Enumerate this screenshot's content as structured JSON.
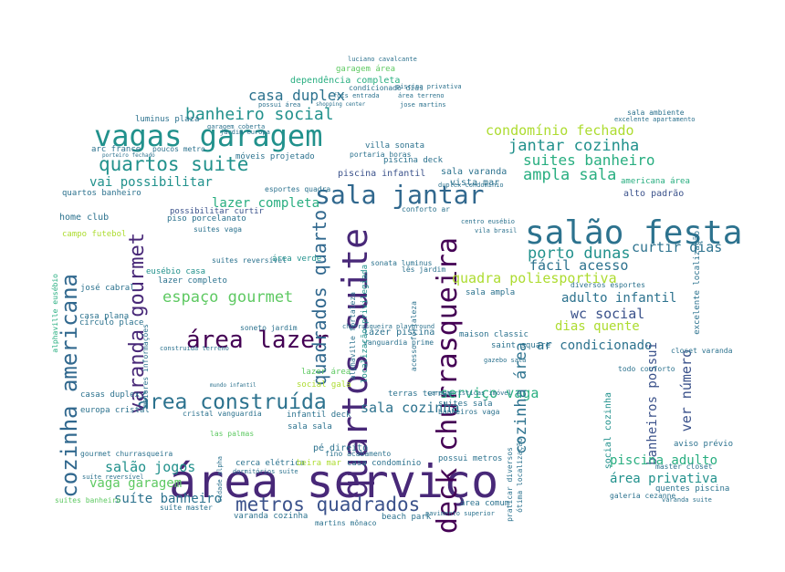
{
  "word_cloud": {
    "palette": [
      "#440154",
      "#3b528b",
      "#2c728e",
      "#21918c",
      "#28ae80",
      "#5ec962",
      "#addc30"
    ],
    "words": {
      "area_servico": "área serviço",
      "salao_festa": "salão festa",
      "vagas_garagem": "vagas garagem",
      "quartos_suite_big": "quartos suite",
      "sala_jantar": "sala jantar",
      "deck_churrasqueira": "deck churrasqueira",
      "area_lazer": "área lazer",
      "area_construida": "área construída",
      "cozinha_americana": "cozinha americana",
      "varanda_gourmet": "varanda gourmet",
      "quadrados_quarto": "quadrados quarto",
      "metros_quadrados": "metros quadrados",
      "banheiro_social": "banheiro social",
      "quartos_suite_small": "quartos suite",
      "casa_duplex": "casa duplex",
      "jantar_cozinha": "jantar cozinha",
      "suites_banheiro": "suites banheiro",
      "ampla_sala": "ampla sala",
      "condominio_fechado": "condomínio fechado",
      "espaco_gourmet": "espaço gourmet",
      "porto_dunas": "porto dunas",
      "facil_acesso": "fácil acesso",
      "curtir_dias": "curtir dias",
      "adulto_infantil": "adulto infantil",
      "wc_social": "wc social",
      "dias_quente": "dias quente",
      "ar_condicionado": "ar condicionado",
      "servico_vaga": "serviço vaga",
      "quadra_poliesportiva": "quadra poliesportiva",
      "sala_cozinha": "sala cozinha",
      "cozinha_area": "cozinha área",
      "banheiros_possui": "banheiros possui",
      "ver_numero": "ver número",
      "piscina_adulto": "piscina adulto",
      "area_privativa": "área privativa",
      "salao_jogos": "salão jogos",
      "vaga_garagem": "vaga garagem",
      "suite_banheiro": "suíte banheiro",
      "lazer_completa": "lazer completa",
      "vai_possibilitar": "vai possibilitar",
      "dependencia_completa": "dependência completa",
      "garagem_area": "garagem área",
      "alto_padrao": "alto padrão",
      "americana_area": "americana área",
      "piscina_infantil": "piscina infantil",
      "sala_varanda": "sala varanda",
      "vista_mar": "vista mar",
      "villa_sonata": "villa sonata",
      "arc_france": "arc france",
      "luminus_plaza": "luminus plaza",
      "poucos_metro": "poucos metro",
      "moveis_projetado": "móveis projetado",
      "piscina_deck": "piscina deck",
      "condicionado_dias": "condicionado dias",
      "sala_ambiente": "sala ambiente",
      "excelente_apartamento": "excelente apartamento",
      "quartos_banheiro": "quartos banheiro",
      "home_club": "home club",
      "campo_futebol": "campo futebol",
      "possibilitar_curtir": "possibilitar curtir",
      "piso_porcelanato": "piso porcelanato",
      "suites_vaga": "suites vaga",
      "suites_reversivel": "suites reversível",
      "eusebio_casa": "eusébio casa",
      "lazer_completo": "lazer completo",
      "area_verde": "área verde",
      "jose_cabral": "josé cabral",
      "soneto_jardim": "soneto jardim",
      "casa_plana": "casa plana",
      "circulo_place": "círculo place",
      "construida_terreno": "construida terreno",
      "maiores_informacoes": "maiores informações",
      "lazer_piscina": "lazer piscina",
      "vanguardia_prime": "vanguardia prime",
      "lazer_area": "lazer área",
      "social_gala": "social gala",
      "casas_duplex": "casas duplex",
      "europa_cristal": "europa cristal",
      "cristal_vanguardia": "cristal vanguardia",
      "infantil_deck": "infantil deck",
      "terras_terras": "terras terras",
      "suites_sala": "suites sala",
      "banheiros_vaga": "banheiros vaga",
      "sala_sala": "sala sala",
      "pe_direito": "pé direito",
      "las_palmas": "las palmas",
      "gourmet_churrasqueira": "gourmet churrasqueira",
      "cerca_eletrica": "cerca elétrica",
      "beira_mar": "beira mar",
      "casa_condominio": "casa condomínio",
      "possui_metros": "possui metros",
      "fino_acabamento": "fino acabamento",
      "suites_banheiro_left": "suites banheiro",
      "suite_master": "suíte master",
      "varanda_cozinha": "varanda cozinha",
      "beach_park": "beach park",
      "area_comum": "área comum",
      "martins_monaco": "martins mônaco",
      "maison_classic": "maison classic",
      "saint_square": "saint square",
      "diversos_esportes": "diversos esportes",
      "sala_ampla": "sala ampla",
      "caracteristicas_imovel": "características imóvel",
      "aviso_previo": "aviso prévio",
      "quentes_piscina": "quentes piscina",
      "master_closet": "master closet",
      "galeria_cezanne": "galeria cezanne",
      "todo_conforto": "todo conforto",
      "otima_localizacao": "ótima localização",
      "closet_varanda": "closet varanda",
      "social_cozinha": "social cozinha",
      "praticar_diversos": "praticar diversos",
      "alphaville_eusebio": "alphaville eusébio",
      "alphaville_fortaleza": "alphaville fortaleza",
      "localizacao_privilegiada": "localização privilegiada",
      "excelente_localizacao": "excelente localização",
      "portaria_horas": "portaria horas",
      "garagem_coberta": "garagem coberta",
      "jardim_europa": "jardim europa",
      "esportes_quadra": "esportes quadra",
      "conforto_ar": "conforto ar",
      "sonata_luminus": "sonata luminus",
      "les_jardim": "lês jardim",
      "churrasqueira_playground": "churrasqueira playground",
      "duplex_condominio": "duplex condomínio",
      "acesso_fortaleza": "acesso fortaleza",
      "dormitorios_suite": "dormitórios suíte",
      "suite_reversivel": "suíte reversível",
      "pavimento_superior": "pavimento superior",
      "area_terreno": "área terreno",
      "piscina_privativa": "piscina privativa",
      "fgts_entrada": "fgts entrada",
      "possui_area": "possui área",
      "luciano_cavalcante": "luciano cavalcante",
      "martins_jose": "jose martins",
      "shopping_center": "shopping center",
      "vila_brasil": "vila brasil",
      "centro_eusebio": "centro eusébio",
      "gazebo_sala": "gazebo sala",
      "porteiro_fechado": "porteiro fechado",
      "cidade_alpha": "cidade alpha",
      "mundo_infantil": "mundo infantil",
      "varanda_suite": "varanda suite"
    }
  }
}
